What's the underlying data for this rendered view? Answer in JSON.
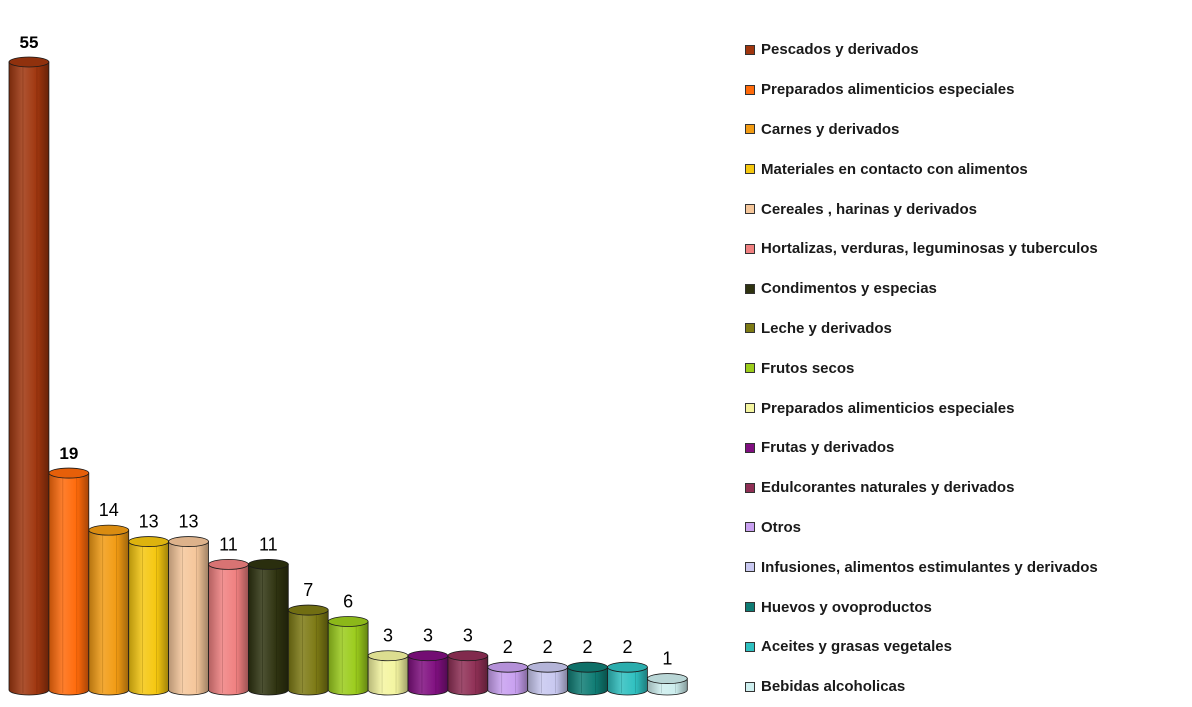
{
  "chart_data": {
    "type": "bar",
    "categories": [
      "Pescados y derivados",
      "Preparados alimenticios especiales",
      "Carnes y derivados",
      "Materiales en contacto con alimentos",
      "Cereales , harinas y derivados",
      "Hortalizas, verduras, leguminosas y  tuberculos",
      "Condimentos y especias",
      "Leche y derivados",
      "Frutos secos",
      "Preparados alimenticios especiales",
      "Frutas y derivados",
      "Edulcorantes naturales y derivados",
      "Otros",
      "Infusiones, alimentos estimulantes y derivados",
      "Huevos y ovoproductos",
      "Aceites y grasas vegetales",
      "Bebidas alcoholicas"
    ],
    "values": [
      55,
      19,
      14,
      13,
      13,
      11,
      11,
      7,
      6,
      3,
      3,
      3,
      2,
      2,
      2,
      2,
      1
    ],
    "value_labels": [
      "55",
      "19",
      "14",
      "13",
      "13",
      "11",
      "11",
      "7",
      "6",
      "3",
      "3",
      "3",
      "2",
      "2",
      "2",
      "2",
      "1"
    ],
    "colors": [
      "#a0360e",
      "#ff6a0a",
      "#f29b13",
      "#f5c70f",
      "#f5c69a",
      "#f08080",
      "#2f3310",
      "#7d7a14",
      "#9bcc1c",
      "#f4f5a0",
      "#800f80",
      "#8f2f55",
      "#c8a0f0",
      "#c8c8f0",
      "#0f7c74",
      "#2fc0c0",
      "#cdeeee"
    ],
    "bold_labels": [
      true,
      true,
      false,
      false,
      false,
      false,
      false,
      false,
      false,
      false,
      false,
      false,
      false,
      false,
      false,
      false,
      false
    ],
    "ylim": [
      0,
      55
    ],
    "grid": false,
    "legend_position": "right",
    "style": "3d-cylinder"
  }
}
